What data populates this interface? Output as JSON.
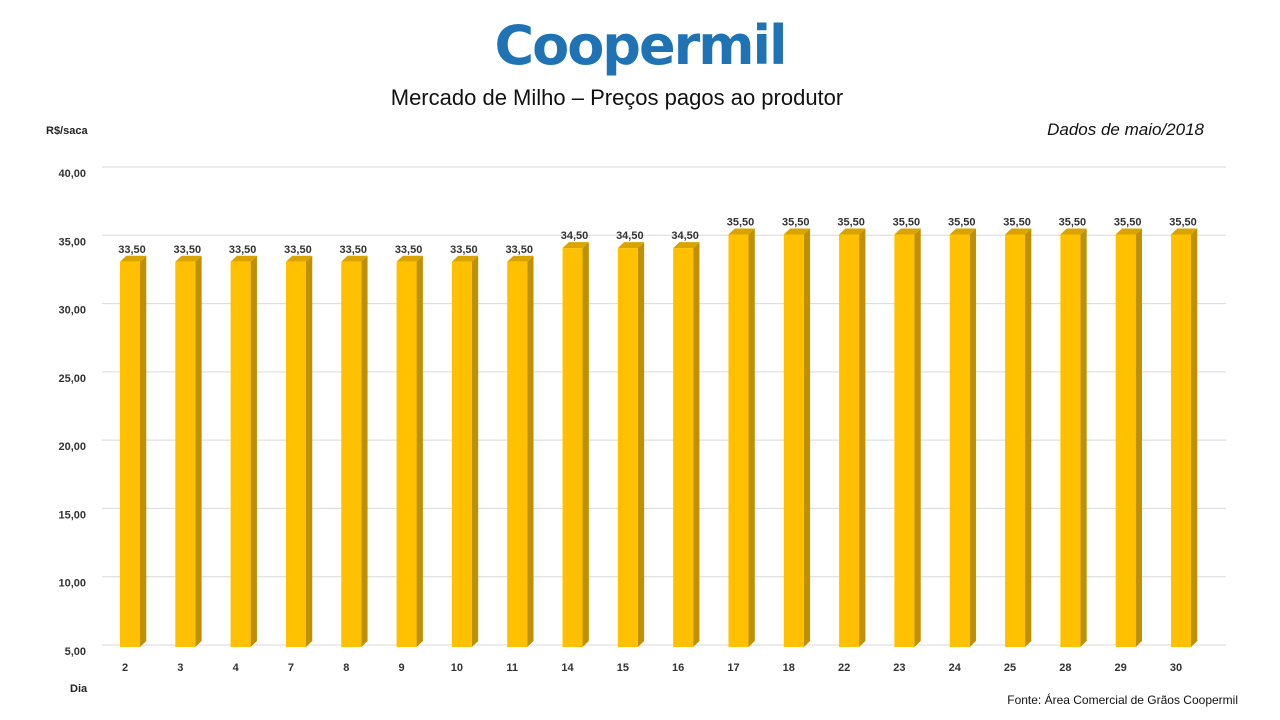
{
  "brand": {
    "name": "Coopermil",
    "color": "#1f73b5"
  },
  "header": {
    "title": "Mercado de Milho – Preços pagos ao produtor",
    "subtitle": "Dados de maio/2018"
  },
  "footer": {
    "source": "Fonte:  Área Comercial de Grãos Coopermil"
  },
  "colors": {
    "bar_front": "#ffc000",
    "bar_side": "#bf9000",
    "bar_top": "#d9a300",
    "grid": "#d9d9d9"
  },
  "chart_data": {
    "type": "bar",
    "title": "Mercado de Milho – Preços pagos ao produtor",
    "subtitle": "Dados de maio/2018",
    "ylabel": "R$/saca",
    "xlabel": "Dia",
    "categories": [
      "2",
      "3",
      "4",
      "7",
      "8",
      "9",
      "10",
      "11",
      "14",
      "15",
      "16",
      "17",
      "18",
      "22",
      "23",
      "24",
      "25",
      "28",
      "29",
      "30"
    ],
    "values": [
      33.5,
      33.5,
      33.5,
      33.5,
      33.5,
      33.5,
      33.5,
      33.5,
      34.5,
      34.5,
      34.5,
      35.5,
      35.5,
      35.5,
      35.5,
      35.5,
      35.5,
      35.5,
      35.5,
      35.5
    ],
    "value_labels": [
      "33,50",
      "33,50",
      "33,50",
      "33,50",
      "33,50",
      "33,50",
      "33,50",
      "33,50",
      "34,50",
      "34,50",
      "34,50",
      "35,50",
      "35,50",
      "35,50",
      "35,50",
      "35,50",
      "35,50",
      "35,50",
      "35,50",
      "35,50"
    ],
    "ylim": [
      5,
      40
    ],
    "yticks": [
      5,
      10,
      15,
      20,
      25,
      30,
      35,
      40
    ],
    "ytick_labels": [
      "5,00",
      "10,00",
      "15,00",
      "20,00",
      "25,00",
      "30,00",
      "35,00",
      "40,00"
    ],
    "grid": true,
    "legend": "none"
  }
}
